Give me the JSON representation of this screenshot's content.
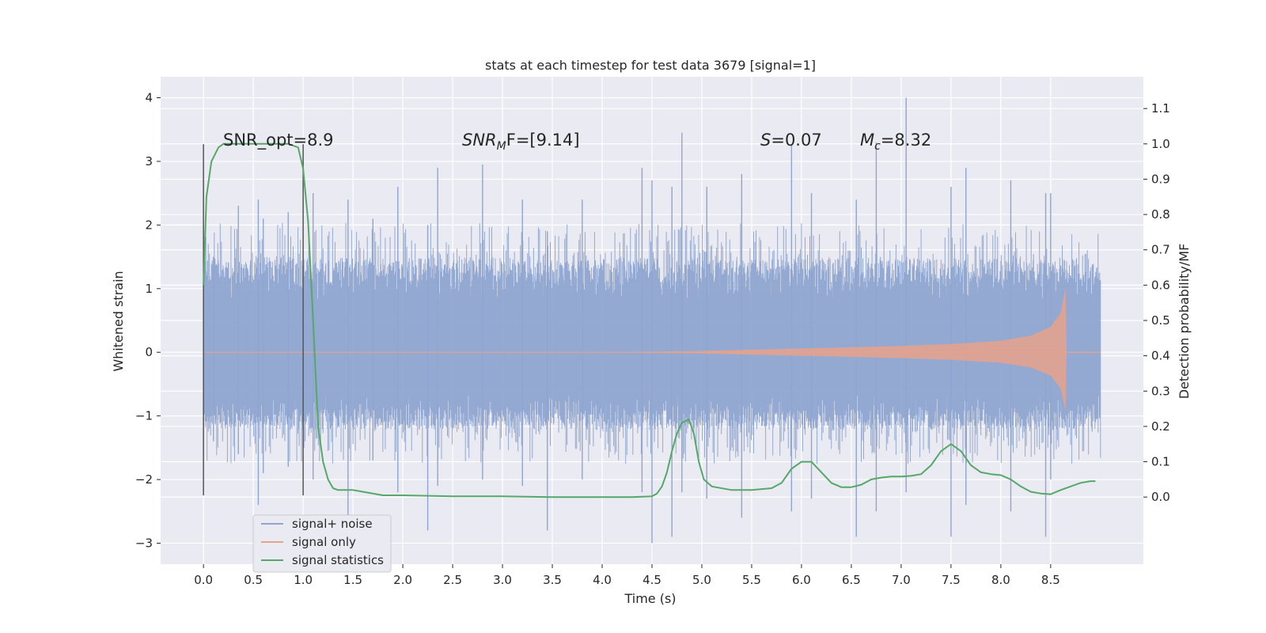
{
  "chart_data": {
    "type": "line",
    "title": "stats at each timestep for test data 3679 [signal=1]",
    "xlabel": "Time (s)",
    "ylabel_left": "Whitened strain",
    "ylabel_right": "Detection probability/MF",
    "xlim": [
      -0.43,
      9.43
    ],
    "ylim_left": [
      -3.33,
      4.33
    ],
    "ylim_right": [
      -0.19,
      1.19
    ],
    "xticks": [
      0.0,
      0.5,
      1.0,
      1.5,
      2.0,
      2.5,
      3.0,
      3.5,
      4.0,
      4.5,
      5.0,
      5.5,
      6.0,
      6.5,
      7.0,
      7.5,
      8.0,
      8.5
    ],
    "xtick_labels": [
      "0.0",
      "0.5",
      "1.0",
      "1.5",
      "2.0",
      "2.5",
      "3.0",
      "3.5",
      "4.0",
      "4.5",
      "5.0",
      "5.5",
      "6.0",
      "6.5",
      "7.0",
      "7.5",
      "8.0",
      "8.5"
    ],
    "yticks_left": [
      -3,
      -2,
      -1,
      0,
      1,
      2,
      3,
      4
    ],
    "ytick_labels_left": [
      "−3",
      "−2",
      "−1",
      "0",
      "1",
      "2",
      "3",
      "4"
    ],
    "yticks_right": [
      0.0,
      0.1,
      0.2,
      0.3,
      0.4,
      0.5,
      0.6,
      0.7,
      0.8,
      0.9,
      1.0,
      1.1
    ],
    "ytick_labels_right": [
      "0.0",
      "0.1",
      "0.2",
      "0.3",
      "0.4",
      "0.5",
      "0.6",
      "0.7",
      "0.8",
      "0.9",
      "1.0",
      "1.1"
    ],
    "noise_band": {
      "t_start": 0.0,
      "t_end": 9.0,
      "typical_low": -0.9,
      "typical_high": 1.1
    },
    "noise_spikes": [
      {
        "t": 0.1,
        "high": 1.5,
        "low": -1.4
      },
      {
        "t": 0.35,
        "high": 2.3,
        "low": -1.6
      },
      {
        "t": 0.55,
        "high": 2.4,
        "low": -2.4
      },
      {
        "t": 0.6,
        "high": 2.1,
        "low": -1.9
      },
      {
        "t": 0.85,
        "high": 2.2,
        "low": -1.8
      },
      {
        "t": 1.1,
        "high": 2.5,
        "low": -2.0
      },
      {
        "t": 1.45,
        "high": 2.4,
        "low": -2.6
      },
      {
        "t": 1.7,
        "high": 2.1,
        "low": -1.7
      },
      {
        "t": 1.95,
        "high": 2.6,
        "low": -2.2
      },
      {
        "t": 2.25,
        "high": 2.0,
        "low": -2.8
      },
      {
        "t": 2.35,
        "high": 2.9,
        "low": -2.1
      },
      {
        "t": 2.8,
        "high": 2.95,
        "low": -2.0
      },
      {
        "t": 3.2,
        "high": 2.4,
        "low": -2.1
      },
      {
        "t": 3.45,
        "high": 1.9,
        "low": -2.8
      },
      {
        "t": 3.8,
        "high": 2.4,
        "low": -2.0
      },
      {
        "t": 4.4,
        "high": 2.9,
        "low": -2.2
      },
      {
        "t": 4.5,
        "high": 2.7,
        "low": -3.0
      },
      {
        "t": 4.7,
        "high": 2.6,
        "low": -2.9
      },
      {
        "t": 4.8,
        "high": 3.45,
        "low": -2.2
      },
      {
        "t": 5.05,
        "high": 2.6,
        "low": -2.3
      },
      {
        "t": 5.4,
        "high": 2.8,
        "low": -2.6
      },
      {
        "t": 5.9,
        "high": 3.25,
        "low": -2.5
      },
      {
        "t": 6.1,
        "high": 2.5,
        "low": -2.3
      },
      {
        "t": 6.55,
        "high": 2.4,
        "low": -2.9
      },
      {
        "t": 6.75,
        "high": 3.3,
        "low": -2.5
      },
      {
        "t": 7.05,
        "high": 4.0,
        "low": -2.2
      },
      {
        "t": 7.5,
        "high": 2.6,
        "low": -2.9
      },
      {
        "t": 7.65,
        "high": 2.9,
        "low": -2.4
      },
      {
        "t": 8.1,
        "high": 2.7,
        "low": -2.5
      },
      {
        "t": 8.45,
        "high": 2.5,
        "low": -2.9
      },
      {
        "t": 8.5,
        "high": 2.5,
        "low": -2.0
      }
    ],
    "signal_envelope": [
      {
        "t": 4.0,
        "amp": 0.0
      },
      {
        "t": 5.0,
        "amp": 0.02
      },
      {
        "t": 6.0,
        "amp": 0.06
      },
      {
        "t": 7.0,
        "amp": 0.1
      },
      {
        "t": 7.5,
        "amp": 0.13
      },
      {
        "t": 8.0,
        "amp": 0.18
      },
      {
        "t": 8.3,
        "amp": 0.26
      },
      {
        "t": 8.5,
        "amp": 0.4
      },
      {
        "t": 8.6,
        "amp": 0.62
      },
      {
        "t": 8.65,
        "amp": 1.0
      },
      {
        "t": 8.66,
        "amp": 0.0
      }
    ],
    "series": [
      {
        "name": "signal statistics",
        "axis": "right",
        "x": [
          0.0,
          0.03,
          0.08,
          0.15,
          0.2,
          0.3,
          0.5,
          0.7,
          0.85,
          0.95,
          1.0,
          1.05,
          1.1,
          1.15,
          1.2,
          1.25,
          1.3,
          1.35,
          1.4,
          1.5,
          1.6,
          1.8,
          2.0,
          2.5,
          3.0,
          3.5,
          3.8,
          4.0,
          4.3,
          4.5,
          4.55,
          4.6,
          4.65,
          4.7,
          4.75,
          4.8,
          4.87,
          4.92,
          4.97,
          5.02,
          5.1,
          5.3,
          5.5,
          5.7,
          5.8,
          5.9,
          6.0,
          6.1,
          6.2,
          6.3,
          6.4,
          6.5,
          6.6,
          6.7,
          6.8,
          6.9,
          7.0,
          7.1,
          7.2,
          7.3,
          7.4,
          7.5,
          7.6,
          7.7,
          7.8,
          7.9,
          8.0,
          8.1,
          8.2,
          8.3,
          8.4,
          8.5,
          8.6,
          8.7,
          8.8,
          8.9,
          8.95
        ],
        "values": [
          0.6,
          0.85,
          0.95,
          0.99,
          1.0,
          1.0,
          1.0,
          1.0,
          1.0,
          0.99,
          0.93,
          0.78,
          0.5,
          0.2,
          0.1,
          0.05,
          0.025,
          0.02,
          0.02,
          0.02,
          0.015,
          0.005,
          0.005,
          0.002,
          0.002,
          0.0,
          0.0,
          0.0,
          0.0,
          0.002,
          0.01,
          0.03,
          0.07,
          0.13,
          0.18,
          0.21,
          0.22,
          0.18,
          0.1,
          0.05,
          0.03,
          0.02,
          0.02,
          0.025,
          0.04,
          0.08,
          0.1,
          0.1,
          0.07,
          0.04,
          0.028,
          0.028,
          0.035,
          0.05,
          0.055,
          0.058,
          0.058,
          0.06,
          0.065,
          0.09,
          0.13,
          0.15,
          0.13,
          0.09,
          0.07,
          0.065,
          0.062,
          0.05,
          0.03,
          0.015,
          0.01,
          0.008,
          0.02,
          0.03,
          0.04,
          0.045,
          0.045
        ]
      }
    ],
    "vertical_lines": [
      {
        "t": 0.0,
        "y_low": -2.25,
        "y_high": 3.27
      },
      {
        "t": 1.0,
        "y_low": -2.25,
        "y_high": 3.27
      }
    ],
    "annotations": [
      {
        "plain": "SNR_opt=8.9"
      },
      {
        "math": "SNR",
        "sub": "M",
        "rest": "F=[9.14]"
      },
      {
        "math": "S",
        "sub": "",
        "rest": "=0.07"
      },
      {
        "math": "M",
        "sub": "c",
        "rest": "=8.32"
      }
    ],
    "legend": {
      "position": "lower-left",
      "entries": [
        {
          "label": "signal+ noise",
          "color": "#8fa5cf"
        },
        {
          "label": "signal only",
          "color": "#e7a28b"
        },
        {
          "label": "signal statistics",
          "color": "#55a868"
        }
      ]
    },
    "colors": {
      "background": "#eaeaf2",
      "grid": "#ffffff",
      "noise": "#8fa5cf",
      "signal": "#e7a28b",
      "statistics": "#55a868",
      "vline": "#555555"
    }
  }
}
